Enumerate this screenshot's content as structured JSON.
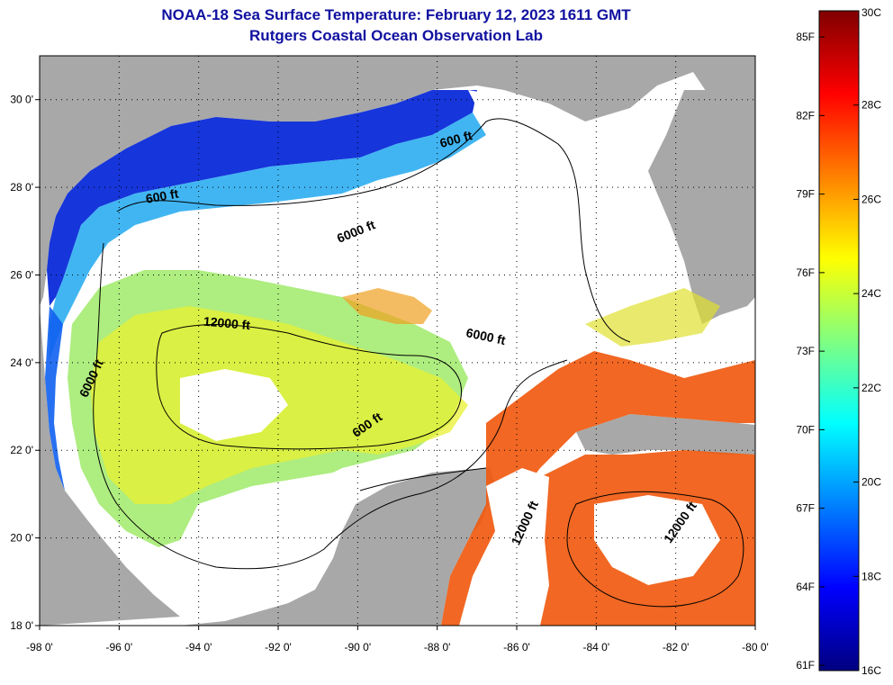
{
  "title_line1": "NOAA-18 Sea Surface Temperature:  February 12, 2023 1611 GMT",
  "title_line2": "Rutgers Coastal Ocean Observation Lab",
  "map": {
    "lon_range": [
      -98,
      -80
    ],
    "lat_range": [
      18,
      31
    ],
    "land_color": "#a8a8a8",
    "cloud_color": "#ffffff",
    "grid": "dotted",
    "lon_ticks": [
      {
        "value": -98,
        "label": "-98 0'"
      },
      {
        "value": -96,
        "label": "-96 0'"
      },
      {
        "value": -94,
        "label": "-94 0'"
      },
      {
        "value": -92,
        "label": "-92 0'"
      },
      {
        "value": -90,
        "label": "-90 0'"
      },
      {
        "value": -88,
        "label": "-88 0'"
      },
      {
        "value": -86,
        "label": "-86 0'"
      },
      {
        "value": -84,
        "label": "-84 0'"
      },
      {
        "value": -82,
        "label": "-82 0'"
      },
      {
        "value": -80,
        "label": "-80 0'"
      }
    ],
    "lat_ticks": [
      {
        "value": 30,
        "label": "30 0'"
      },
      {
        "value": 28,
        "label": "28 0'"
      },
      {
        "value": 26,
        "label": "26 0'"
      },
      {
        "value": 24,
        "label": "24 0'"
      },
      {
        "value": 22,
        "label": "22 0'"
      },
      {
        "value": 20,
        "label": "20 0'"
      },
      {
        "value": 18,
        "label": "18 0'"
      }
    ],
    "contour_labels": [
      {
        "text": "600 ft",
        "lon": -87.5,
        "lat": 29.0,
        "rotate": -15
      },
      {
        "text": "600 ft",
        "lon": -94.9,
        "lat": 27.7,
        "rotate": -10
      },
      {
        "text": "6000 ft",
        "lon": -90.0,
        "lat": 26.9,
        "rotate": -22
      },
      {
        "text": "12000 ft",
        "lon": -93.3,
        "lat": 24.8,
        "rotate": 5
      },
      {
        "text": "6000 ft",
        "lon": -86.8,
        "lat": 24.5,
        "rotate": 12
      },
      {
        "text": "6000 ft",
        "lon": -96.6,
        "lat": 23.6,
        "rotate": -65
      },
      {
        "text": "600 ft",
        "lon": -89.7,
        "lat": 22.5,
        "rotate": -35
      },
      {
        "text": "12000 ft",
        "lon": -85.7,
        "lat": 20.3,
        "rotate": -65
      },
      {
        "text": "12000 ft",
        "lon": -81.8,
        "lat": 20.3,
        "rotate": -55
      }
    ]
  },
  "colorbar": {
    "range_c": [
      16,
      30
    ],
    "stops": [
      "#000080",
      "#0000ff",
      "#0080ff",
      "#00ffff",
      "#80ff80",
      "#ffff00",
      "#ff8000",
      "#ff0000",
      "#800000"
    ],
    "celsius_labels": [
      {
        "value": 30,
        "label": "30C"
      },
      {
        "value": 28,
        "label": "28C"
      },
      {
        "value": 26,
        "label": "26C"
      },
      {
        "value": 24,
        "label": "24C"
      },
      {
        "value": 22,
        "label": "22C"
      },
      {
        "value": 20,
        "label": "20C"
      },
      {
        "value": 18,
        "label": "18C"
      },
      {
        "value": 16,
        "label": "16C"
      }
    ],
    "fahrenheit_labels": [
      {
        "value_f": 85,
        "label": "85F"
      },
      {
        "value_f": 82,
        "label": "82F"
      },
      {
        "value_f": 79,
        "label": "79F"
      },
      {
        "value_f": 76,
        "label": "76F"
      },
      {
        "value_f": 73,
        "label": "73F"
      },
      {
        "value_f": 70,
        "label": "70F"
      },
      {
        "value_f": 67,
        "label": "67F"
      },
      {
        "value_f": 64,
        "label": "64F"
      },
      {
        "value_f": 61,
        "label": "61F"
      }
    ]
  }
}
